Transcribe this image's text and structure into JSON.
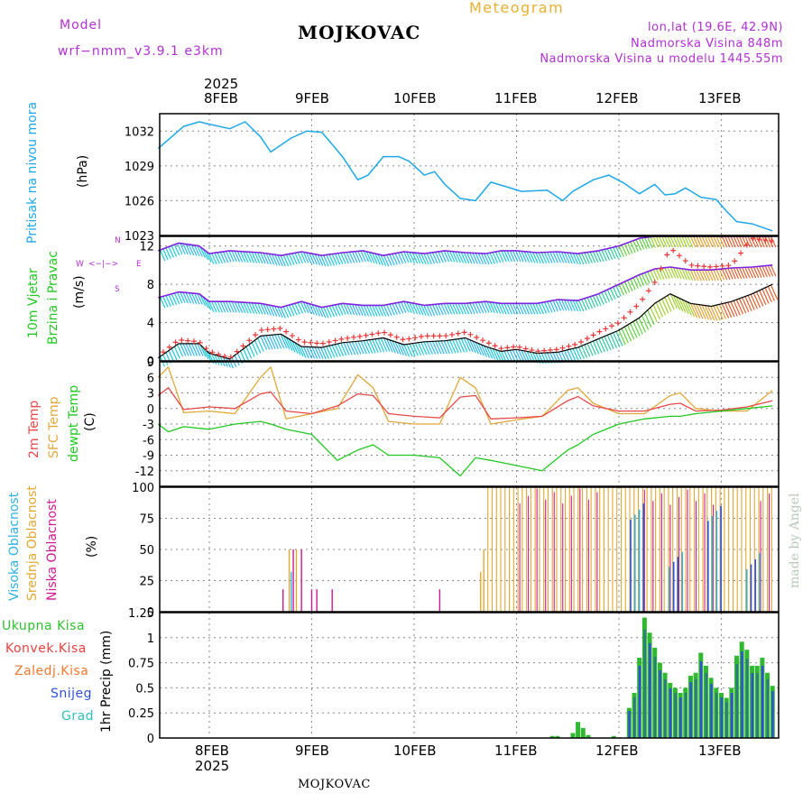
{
  "header": {
    "model_label": "Model",
    "model_name": "wrf−nmm_v3.9.1  e3km",
    "city": "MOJKOVAC",
    "product": "Meteogram",
    "coords": "lon,lat (19.6E, 42.9N)",
    "elevation": "Nadmorska Visina 848m",
    "model_elevation": "Nadmorska Visina u modelu 1445.55m"
  },
  "footer": {
    "city": "MOJKOVAC",
    "credit": "made by Angel"
  },
  "time_axis": {
    "top_year": "2025",
    "bottom_year": "2025",
    "dates": [
      "8FEB",
      "9FEB",
      "10FEB",
      "11FEB",
      "12FEB",
      "13FEB"
    ]
  },
  "colors": {
    "pressure": "#1ea8e8",
    "temp2m": "#e84848",
    "sfc_temp": "#e0a838",
    "dewpt": "#20c820",
    "wind_purple": "#8020e0",
    "gust_red": "#e83838",
    "total_precip": "#30b830",
    "high_cloud": "#30b0e0",
    "mid_cloud": "#e0a830",
    "low_cloud": "#d01890",
    "snow": "#3050d8"
  },
  "panel_labels": {
    "pressure": [
      "Pritisak na nivou mora",
      "(hPa)"
    ],
    "wind": [
      "10m Vjetar",
      "Brzina i Pravac",
      "(m/s)"
    ],
    "compass": {
      "n": "N",
      "s": "S",
      "e": "E",
      "w": "W",
      "arrows": "<−|−>"
    },
    "temp": [
      "2m Temp",
      "SFC Temp",
      "dewpt Temp",
      "(C)"
    ],
    "cloud": [
      "Visoka Oblacnost",
      "Srednja Oblacnost",
      "Niska Oblacnost",
      "(%)"
    ],
    "precip_legend": [
      "Ukupna  Kisa",
      "Konvek.Kisa",
      "Zaledj.Kisa",
      "Snijeg",
      "Grad"
    ],
    "precip_axis": "1hr Precip (mm)"
  },
  "chart_data": [
    {
      "type": "line",
      "title": "Pritisak na nivou mora",
      "ylabel": "(hPa)",
      "ylim": [
        1023,
        1033.5
      ],
      "yticks": [
        "1023",
        "1026",
        "1029",
        "1032"
      ],
      "x_days": [
        7.5,
        7.75,
        7.9,
        8.0,
        8.2,
        8.35,
        8.5,
        8.6,
        8.8,
        8.95,
        9.1,
        9.3,
        9.45,
        9.55,
        9.7,
        9.85,
        9.95,
        10.1,
        10.2,
        10.3,
        10.45,
        10.6,
        10.75,
        10.9,
        11.05,
        11.3,
        11.45,
        11.55,
        11.75,
        11.9,
        12.05,
        12.2,
        12.35,
        12.45,
        12.55,
        12.65,
        12.8,
        12.95,
        13.05,
        13.15,
        13.3,
        13.5
      ],
      "series": [
        {
          "name": "MSLP",
          "values": [
            1030.5,
            1032.4,
            1032.8,
            1032.6,
            1032.2,
            1032.8,
            1031.5,
            1030.2,
            1031.4,
            1032.0,
            1031.9,
            1029.8,
            1027.8,
            1028.2,
            1029.8,
            1029.8,
            1029.4,
            1028.2,
            1028.5,
            1027.4,
            1026.2,
            1026.0,
            1027.6,
            1027.2,
            1026.8,
            1026.9,
            1026.0,
            1026.8,
            1027.8,
            1028.2,
            1027.5,
            1026.6,
            1027.4,
            1026.5,
            1026.6,
            1027.1,
            1026.3,
            1026.1,
            1025.1,
            1024.2,
            1024.0,
            1023.4
          ]
        }
      ]
    },
    {
      "type": "line",
      "title": "10m Vjetar Brzina i Pravac",
      "ylabel": "(m/s)",
      "ylim": [
        0,
        13
      ],
      "yticks": [
        "0",
        "4",
        "8",
        "12"
      ],
      "x_days": [
        7.5,
        7.7,
        7.9,
        8.0,
        8.2,
        8.5,
        8.7,
        8.9,
        9.1,
        9.3,
        9.5,
        9.7,
        9.9,
        10.1,
        10.3,
        10.5,
        10.7,
        10.85,
        11.0,
        11.2,
        11.4,
        11.6,
        11.8,
        12.0,
        12.2,
        12.35,
        12.5,
        12.7,
        12.9,
        13.1,
        13.3,
        13.5
      ],
      "series": [
        {
          "name": "speed_upper",
          "values": [
            11.5,
            12.3,
            12.0,
            11.2,
            11.5,
            11.3,
            11.0,
            11.4,
            11.0,
            11.3,
            11.5,
            11.0,
            11.4,
            11.2,
            11.5,
            11.3,
            11.2,
            11.5,
            11.5,
            11.3,
            11.4,
            11.2,
            11.5,
            12.0,
            12.8,
            13.0,
            13.0,
            13.0,
            13.0,
            13.0,
            13.0,
            13.0
          ]
        },
        {
          "name": "speed_middle",
          "values": [
            6.6,
            7.2,
            7.0,
            6.2,
            6.2,
            6.0,
            5.6,
            6.2,
            5.6,
            6.0,
            5.8,
            5.8,
            6.2,
            5.8,
            6.0,
            6.0,
            6.2,
            6.0,
            6.0,
            6.0,
            6.4,
            6.3,
            7.0,
            8.0,
            9.0,
            9.6,
            9.8,
            9.5,
            9.5,
            9.7,
            9.8,
            10.0
          ]
        },
        {
          "name": "gust",
          "values": [
            0.5,
            2.2,
            2.0,
            1.0,
            0.3,
            3.2,
            3.4,
            2.0,
            1.8,
            2.3,
            2.6,
            3.0,
            2.2,
            2.6,
            2.6,
            3.0,
            2.0,
            1.3,
            1.5,
            1.0,
            1.2,
            1.8,
            3.0,
            4.0,
            6.0,
            8.2,
            11.8,
            10.0,
            9.8,
            10.0,
            12.8,
            12.5
          ]
        },
        {
          "name": "speed_mean",
          "values": [
            0.3,
            1.8,
            1.8,
            0.8,
            0.2,
            2.6,
            2.8,
            1.5,
            1.4,
            1.9,
            2.1,
            2.4,
            1.7,
            2.0,
            2.1,
            2.4,
            1.5,
            1.0,
            1.2,
            0.8,
            0.9,
            1.4,
            2.3,
            3.2,
            4.5,
            6.0,
            7.0,
            6.0,
            5.7,
            6.2,
            7.0,
            8.0
          ]
        }
      ]
    },
    {
      "type": "line",
      "title": "2m Temp / SFC Temp / dewpt Temp",
      "ylabel": "(C)",
      "ylim": [
        -15,
        9
      ],
      "yticks": [
        "-12",
        "-9",
        "-6",
        "-3",
        "0",
        "3",
        "6",
        "9"
      ],
      "x_days": [
        7.5,
        7.6,
        7.75,
        8.0,
        8.25,
        8.5,
        8.6,
        8.75,
        9.0,
        9.25,
        9.45,
        9.6,
        9.75,
        10.0,
        10.25,
        10.45,
        10.6,
        10.75,
        11.0,
        11.25,
        11.5,
        11.6,
        11.75,
        12.0,
        12.25,
        12.5,
        12.6,
        12.75,
        13.0,
        13.25,
        13.5
      ],
      "series": [
        {
          "name": "2m Temp",
          "values": [
            2.5,
            4.0,
            -0.2,
            0.3,
            0.0,
            2.8,
            3.2,
            -0.5,
            -1.0,
            0.5,
            2.8,
            2.5,
            -1.0,
            -1.5,
            -1.8,
            2.2,
            2.5,
            -2.0,
            -1.8,
            -1.5,
            1.5,
            2.3,
            0.5,
            -0.5,
            -0.5,
            0.8,
            1.0,
            -0.5,
            -0.3,
            0.3,
            1.5
          ]
        },
        {
          "name": "SFC Temp",
          "values": [
            6.0,
            8.0,
            -0.8,
            -0.5,
            -1.0,
            6.0,
            8.0,
            -2.0,
            -1.0,
            0.0,
            6.5,
            4.0,
            -2.5,
            -3.0,
            -3.0,
            6.0,
            4.0,
            -3.0,
            -2.2,
            -1.5,
            3.5,
            4.0,
            1.0,
            -1.0,
            -1.0,
            2.5,
            3.0,
            0.0,
            -0.5,
            -0.5,
            3.5
          ]
        },
        {
          "name": "dewpt Temp",
          "values": [
            -3.0,
            -4.5,
            -3.5,
            -4.0,
            -3.0,
            -2.5,
            -3.0,
            -4.0,
            -5.0,
            -10.0,
            -8.0,
            -7.0,
            -9.0,
            -9.0,
            -9.5,
            -13.0,
            -9.5,
            -10.0,
            -11.0,
            -12.0,
            -8.0,
            -7.0,
            -5.0,
            -3.0,
            -2.0,
            -1.5,
            -1.5,
            -1.0,
            -0.5,
            0.0,
            0.5
          ]
        }
      ]
    },
    {
      "type": "bar",
      "title": "Oblacnost",
      "ylabel": "(%)",
      "ylim": [
        0,
        100
      ],
      "yticks": [
        "0",
        "25",
        "50",
        "75",
        "100"
      ],
      "series": [
        {
          "name": "Srednja Oblacnost",
          "summary": "0% until ~10.7 Feb; spikes to 50% near 8.8 Feb; 80-100% from ~10.7 Feb onward"
        },
        {
          "name": "Niska Oblacnost",
          "summary": "isolated 15-50% spikes on 8-10 Feb; frequent 80-100% after ~12 Feb"
        },
        {
          "name": "Visoka Oblacnost",
          "summary": "mostly 0%; intermittent 20-100% after ~12 Feb"
        }
      ]
    },
    {
      "type": "bar",
      "title": "1hr Precip",
      "ylabel": "(mm)",
      "ylim": [
        0,
        1.25
      ],
      "yticks": [
        "0",
        "0.25",
        "0.5",
        "0.75",
        "1",
        "1.25"
      ],
      "x_days": [
        11.35,
        11.4,
        11.55,
        11.6,
        11.65,
        11.7,
        11.95,
        12.1,
        12.15,
        12.2,
        12.25,
        12.3,
        12.35,
        12.4,
        12.45,
        12.5,
        12.55,
        12.6,
        12.65,
        12.7,
        12.75,
        12.8,
        12.85,
        12.9,
        12.95,
        13.0,
        13.05,
        13.1,
        13.15,
        13.2,
        13.25,
        13.3,
        13.35,
        13.4,
        13.45,
        13.5
      ],
      "series": [
        {
          "name": "Ukupna Kisa",
          "values": [
            0.02,
            0.02,
            0.05,
            0.16,
            0.1,
            0.03,
            0.02,
            0.3,
            0.45,
            0.8,
            1.2,
            1.05,
            0.9,
            0.75,
            0.65,
            0.55,
            0.5,
            0.45,
            0.5,
            0.62,
            0.65,
            0.85,
            0.72,
            0.6,
            0.5,
            0.45,
            0.4,
            0.5,
            0.82,
            0.96,
            0.88,
            0.72,
            0.72,
            0.8,
            0.65,
            0.52
          ]
        }
      ]
    }
  ]
}
